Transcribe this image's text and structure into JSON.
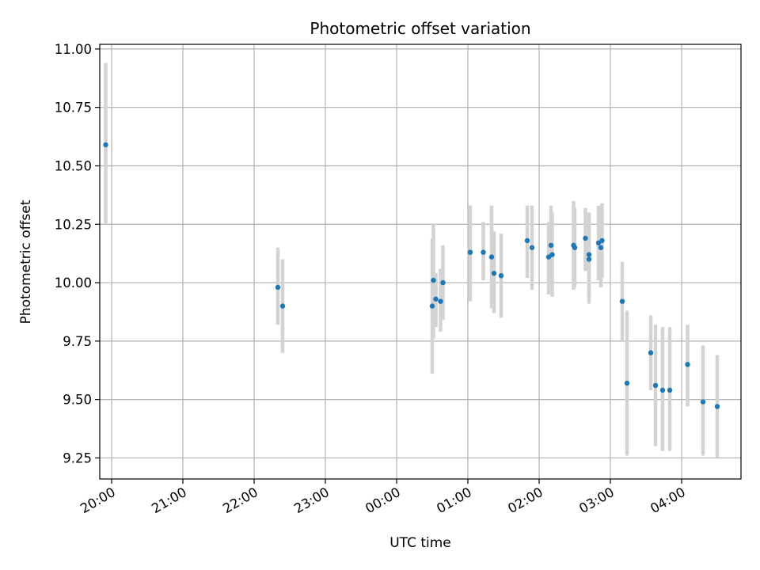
{
  "chart_data": {
    "type": "scatter",
    "title": "Photometric offset variation",
    "xlabel": "UTC time",
    "ylabel": "Photometric offset",
    "x_axis": "time",
    "xlim": [
      "19:50",
      "04:50"
    ],
    "ylim": [
      9.16,
      11.02
    ],
    "x_ticks": [
      "20:00",
      "21:00",
      "22:00",
      "23:00",
      "00:00",
      "01:00",
      "02:00",
      "03:00",
      "04:00"
    ],
    "y_ticks": [
      "11.00",
      "10.75",
      "10.50",
      "10.25",
      "10.00",
      "9.75",
      "9.50",
      "9.25"
    ],
    "grid": true,
    "legend": "none",
    "colors": {
      "point": "#1f77b4",
      "errorbar": "#d3d3d3",
      "grid": "#b0b0b0"
    },
    "series": [
      {
        "points": [
          {
            "t": "19:55",
            "y": 10.59,
            "lo": 10.25,
            "hi": 10.94
          },
          {
            "t": "22:20",
            "y": 9.98,
            "lo": 9.82,
            "hi": 10.15
          },
          {
            "t": "22:24",
            "y": 9.9,
            "lo": 9.7,
            "hi": 10.1
          },
          {
            "t": "00:30",
            "y": 9.9,
            "lo": 9.61,
            "hi": 10.19
          },
          {
            "t": "00:31",
            "y": 10.01,
            "lo": 9.76,
            "hi": 10.25
          },
          {
            "t": "00:33",
            "y": 9.93,
            "lo": 9.81,
            "hi": 10.04
          },
          {
            "t": "00:37",
            "y": 9.92,
            "lo": 9.79,
            "hi": 10.06
          },
          {
            "t": "00:39",
            "y": 10.0,
            "lo": 9.84,
            "hi": 10.16
          },
          {
            "t": "01:02",
            "y": 10.13,
            "lo": 9.92,
            "hi": 10.33
          },
          {
            "t": "01:13",
            "y": 10.13,
            "lo": 10.01,
            "hi": 10.26
          },
          {
            "t": "01:20",
            "y": 10.11,
            "lo": 9.89,
            "hi": 10.33
          },
          {
            "t": "01:22",
            "y": 10.04,
            "lo": 9.87,
            "hi": 10.22
          },
          {
            "t": "01:28",
            "y": 10.03,
            "lo": 9.85,
            "hi": 10.21
          },
          {
            "t": "01:50",
            "y": 10.18,
            "lo": 10.02,
            "hi": 10.33
          },
          {
            "t": "01:54",
            "y": 10.15,
            "lo": 9.97,
            "hi": 10.33
          },
          {
            "t": "02:08",
            "y": 10.11,
            "lo": 9.95,
            "hi": 10.26
          },
          {
            "t": "02:10",
            "y": 10.16,
            "lo": 9.99,
            "hi": 10.33
          },
          {
            "t": "02:11",
            "y": 10.12,
            "lo": 9.94,
            "hi": 10.3
          },
          {
            "t": "02:29",
            "y": 10.16,
            "lo": 9.97,
            "hi": 10.35
          },
          {
            "t": "02:30",
            "y": 10.15,
            "lo": 9.98,
            "hi": 10.32
          },
          {
            "t": "02:39",
            "y": 10.19,
            "lo": 10.05,
            "hi": 10.32
          },
          {
            "t": "02:42",
            "y": 10.12,
            "lo": 9.95,
            "hi": 10.3
          },
          {
            "t": "02:42",
            "y": 10.1,
            "lo": 9.91,
            "hi": 10.29
          },
          {
            "t": "02:50",
            "y": 10.17,
            "lo": 10.01,
            "hi": 10.33
          },
          {
            "t": "02:52",
            "y": 10.15,
            "lo": 9.98,
            "hi": 10.31
          },
          {
            "t": "02:53",
            "y": 10.18,
            "lo": 10.02,
            "hi": 10.34
          },
          {
            "t": "03:10",
            "y": 9.92,
            "lo": 9.75,
            "hi": 10.09
          },
          {
            "t": "03:14",
            "y": 9.57,
            "lo": 9.26,
            "hi": 9.88
          },
          {
            "t": "03:34",
            "y": 9.7,
            "lo": 9.54,
            "hi": 9.86
          },
          {
            "t": "03:38",
            "y": 9.56,
            "lo": 9.3,
            "hi": 9.82
          },
          {
            "t": "03:44",
            "y": 9.54,
            "lo": 9.28,
            "hi": 9.81
          },
          {
            "t": "03:50",
            "y": 9.54,
            "lo": 9.28,
            "hi": 9.81
          },
          {
            "t": "04:05",
            "y": 9.65,
            "lo": 9.47,
            "hi": 9.82
          },
          {
            "t": "04:18",
            "y": 9.49,
            "lo": 9.26,
            "hi": 9.73
          },
          {
            "t": "04:30",
            "y": 9.47,
            "lo": 9.25,
            "hi": 9.69
          }
        ]
      }
    ]
  }
}
